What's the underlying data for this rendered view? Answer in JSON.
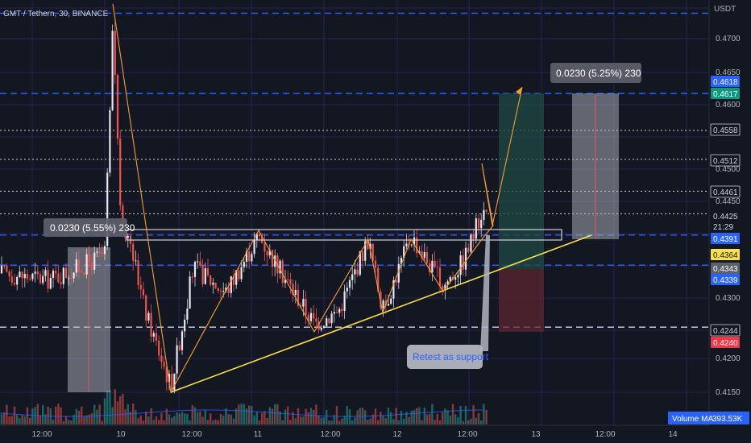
{
  "symbol": "GMT / Tethern, 30, BINANCE",
  "currency": "USDT",
  "colors": {
    "background": "#131722",
    "grid": "#3a2c7a",
    "up": "#26a69a",
    "down": "#ef5350",
    "trendline": "#f7e04b",
    "zigzag": "#f0a030",
    "level_blue": "#2962ff",
    "level_white": "#d1d4dc"
  },
  "chart_data": {
    "type": "candlestick",
    "yscale": "linear",
    "ylim": [
      0.4118,
      0.4745
    ],
    "y_ticks": [
      "0.4700",
      "0.4650",
      "0.4600",
      "0.4500",
      "0.4450",
      "0.4300",
      "0.4200",
      "0.4150"
    ],
    "x_ticks": [
      "12:00",
      "10",
      "12:00",
      "11",
      "12:00",
      "12",
      "12:00",
      "13",
      "12:00",
      "14"
    ],
    "price_labels": [
      {
        "value": "0.4618",
        "style": "blue"
      },
      {
        "value": "0.4617",
        "style": "green"
      },
      {
        "value": "0.4558",
        "style": "outline"
      },
      {
        "value": "0.4512",
        "style": "outline"
      },
      {
        "value": "0.4461",
        "style": "outline"
      },
      {
        "value": "0.4425",
        "style": "plain"
      },
      {
        "value": "21:29",
        "style": "plain"
      },
      {
        "value": "0.4391",
        "style": "blue"
      },
      {
        "value": "0.4364",
        "style": "yellow"
      },
      {
        "value": "0.4343",
        "style": "gray"
      },
      {
        "value": "0.4339",
        "style": "blue"
      },
      {
        "value": "0.4244",
        "style": "outline"
      },
      {
        "value": "0.4240",
        "style": "red"
      }
    ],
    "horizontal_levels": [
      {
        "y": 0.4745,
        "style": "blue-dashed"
      },
      {
        "y": 0.4617,
        "style": "blue-dashed"
      },
      {
        "y": 0.4558,
        "style": "white-dotted"
      },
      {
        "y": 0.4512,
        "style": "white-dotted"
      },
      {
        "y": 0.4461,
        "style": "white-dotted"
      },
      {
        "y": 0.4425,
        "style": "white-dotted"
      },
      {
        "y": 0.4391,
        "style": "blue-dashed"
      },
      {
        "y": 0.4343,
        "style": "blue-dashed"
      },
      {
        "y": 0.4244,
        "style": "white-dashed"
      }
    ],
    "annotations": {
      "measure_left": "0.0230 (5.55%) 230",
      "measure_right": "0.0230 (5.25%) 230",
      "callout": "Retest as support",
      "volume_label": "Volume MA",
      "volume_value": "393.53K"
    }
  }
}
